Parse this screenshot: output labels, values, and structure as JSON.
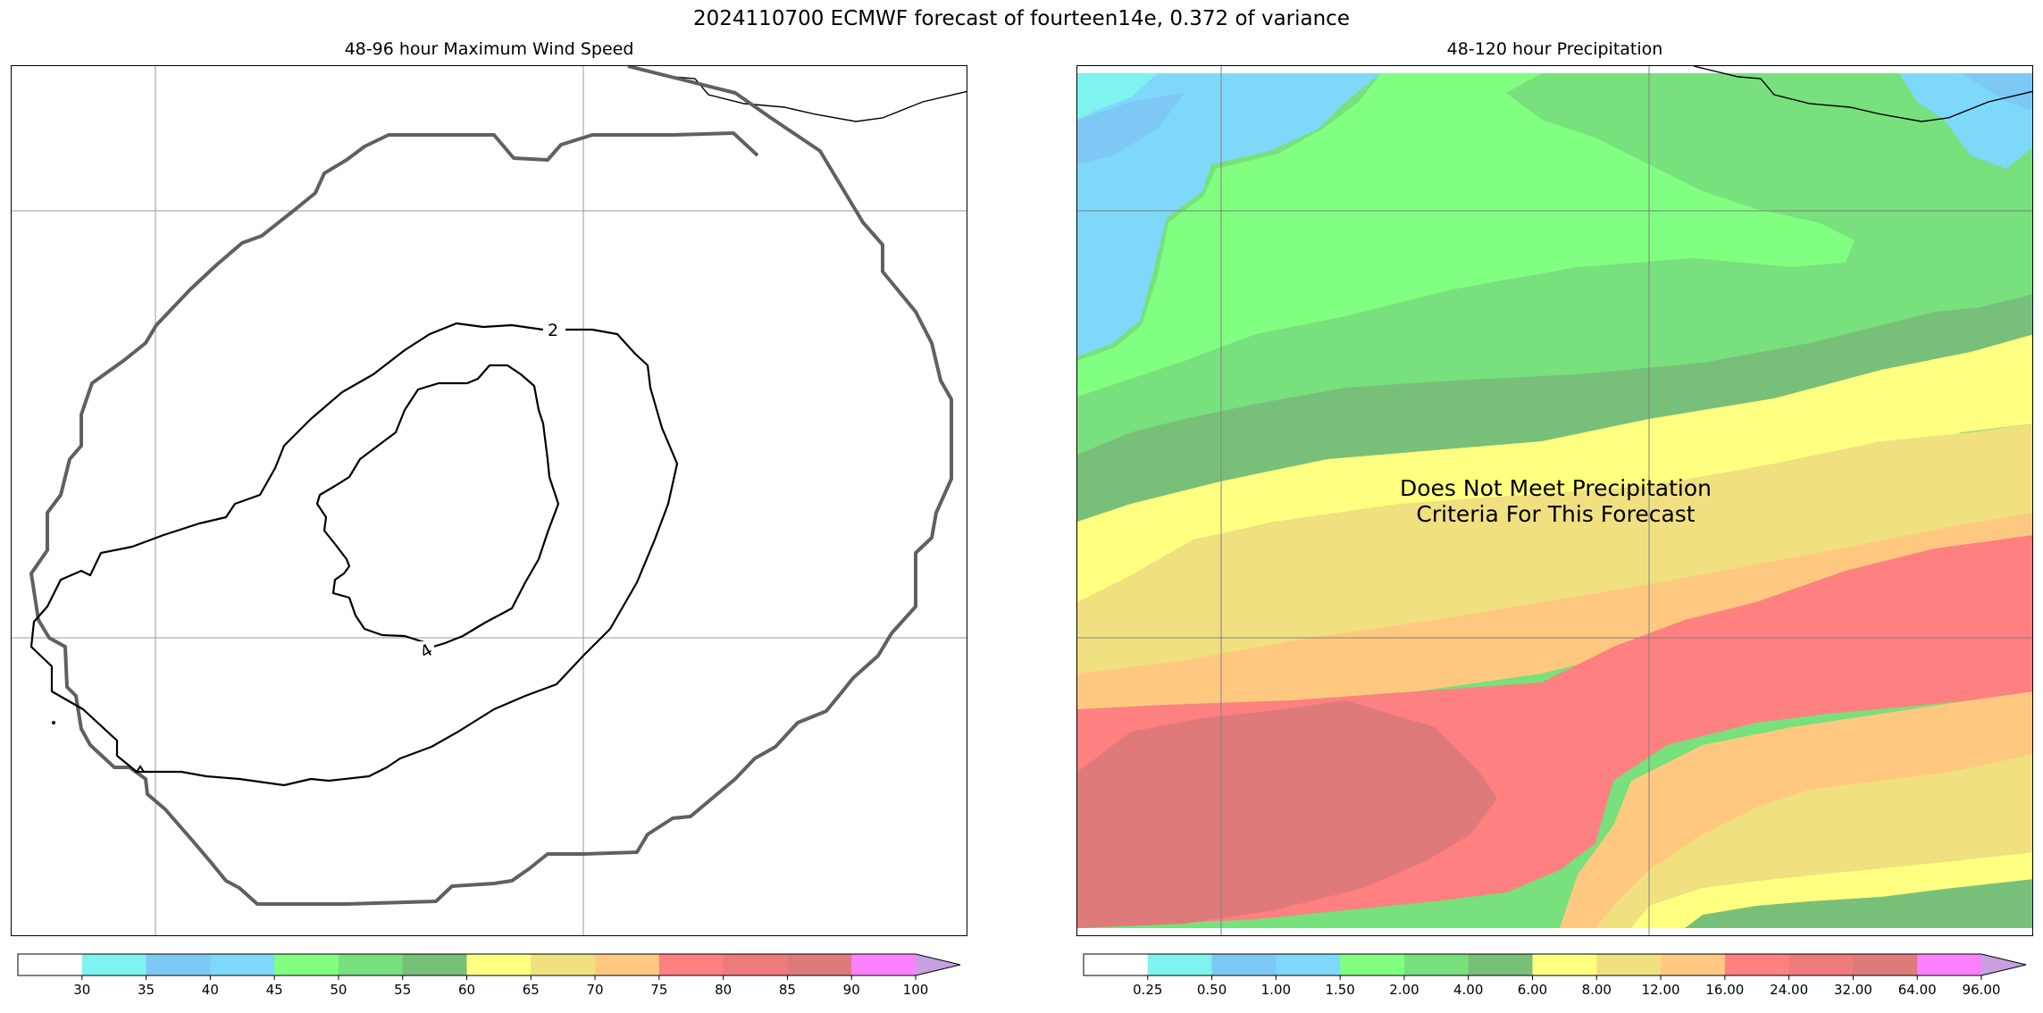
{
  "figure": {
    "title": "2024110700 ECMWF forecast of fourteen14e, 0.372 of variance"
  },
  "chart_data": [
    {
      "type": "contour",
      "title": "48-96 hour Maximum Wind Speed",
      "contour_labels": [
        "2",
        "4"
      ],
      "colorbar": {
        "ticks": [
          "30",
          "35",
          "40",
          "45",
          "50",
          "55",
          "60",
          "65",
          "70",
          "75",
          "80",
          "85",
          "90",
          "100"
        ],
        "colors": [
          "#ffffff",
          "#7ef3f0",
          "#7ec8f5",
          "#7ed8fa",
          "#80ff80",
          "#78e07c",
          "#78c079",
          "#ffff80",
          "#f0e080",
          "#ffc880",
          "#ff8080",
          "#ef7b7b",
          "#df7a7a",
          "#ff80ff",
          "#c8a0e0"
        ]
      }
    },
    {
      "type": "filled-contour",
      "title": "48-120 hour Precipitation",
      "annotation": "Does Not Meet Precipitation\nCriteria For This Forecast",
      "colorbar": {
        "ticks": [
          "0.25",
          "0.50",
          "1.00",
          "1.50",
          "2.00",
          "4.00",
          "6.00",
          "8.00",
          "12.00",
          "16.00",
          "24.00",
          "32.00",
          "64.00",
          "96.00"
        ],
        "colors": [
          "#ffffff",
          "#7ef3f0",
          "#7ec8f5",
          "#7ed8fa",
          "#80ff80",
          "#78e07c",
          "#78c079",
          "#ffff80",
          "#f0e080",
          "#ffc880",
          "#ff8080",
          "#ef7b7b",
          "#df7a7a",
          "#ff80ff",
          "#c8a0e0"
        ]
      }
    }
  ]
}
